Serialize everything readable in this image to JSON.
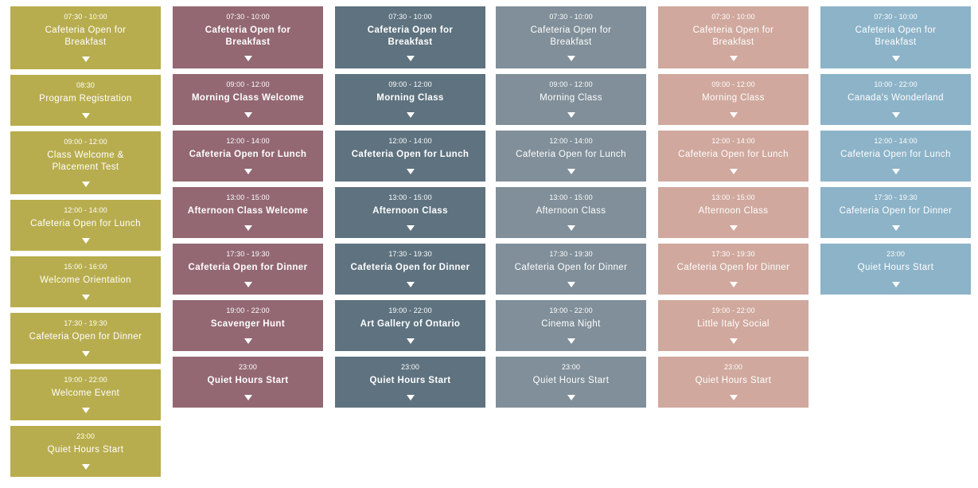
{
  "columns": [
    {
      "color": "#b8ad4e",
      "events": [
        {
          "time": "07:30 - 10:00",
          "title": "Cafeteria Open for Breakfast"
        },
        {
          "time": "08:30",
          "title": "Program Registration"
        },
        {
          "time": "09:00 - 12:00",
          "title": "Class Welcome & Placement Test"
        },
        {
          "time": "12:00 - 14:00",
          "title": "Cafeteria Open for Lunch"
        },
        {
          "time": "15:00 - 16:00",
          "title": "Welcome Orientation"
        },
        {
          "time": "17:30 - 19:30",
          "title": "Cafeteria Open for Dinner"
        },
        {
          "time": "19:00 - 22:00",
          "title": "Welcome Event"
        },
        {
          "time": "23:00",
          "title": "Quiet Hours Start"
        }
      ]
    },
    {
      "color": "#936873",
      "events": [
        {
          "time": "07:30 - 10:00",
          "title": "Cafeteria Open for Breakfast"
        },
        {
          "time": "09:00 - 12:00",
          "title": "Morning Class Welcome"
        },
        {
          "time": "12:00 - 14:00",
          "title": "Cafeteria Open for Lunch"
        },
        {
          "time": "13:00 - 15:00",
          "title": "Afternoon Class Welcome"
        },
        {
          "time": "17:30 - 19:30",
          "title": "Cafeteria Open for Dinner"
        },
        {
          "time": "19:00 - 22:00",
          "title": "Scavenger Hunt"
        },
        {
          "time": "23:00",
          "title": "Quiet Hours Start"
        }
      ]
    },
    {
      "color": "#5e727f",
      "events": [
        {
          "time": "07:30 - 10:00",
          "title": "Cafeteria Open for Breakfast"
        },
        {
          "time": "09:00 - 12:00",
          "title": "Morning Class"
        },
        {
          "time": "12:00 - 14:00",
          "title": "Cafeteria Open for Lunch"
        },
        {
          "time": "13:00 - 15:00",
          "title": "Afternoon Class"
        },
        {
          "time": "17:30 - 19:30",
          "title": "Cafeteria Open for Dinner"
        },
        {
          "time": "19:00 - 22:00",
          "title": "Art Gallery of Ontario"
        },
        {
          "time": "23:00",
          "title": "Quiet Hours Start"
        }
      ]
    },
    {
      "color": "#808f99",
      "events": [
        {
          "time": "07:30 - 10:00",
          "title": "Cafeteria Open for Breakfast"
        },
        {
          "time": "09:00 - 12:00",
          "title": "Morning Class"
        },
        {
          "time": "12:00 - 14:00",
          "title": "Cafeteria Open for Lunch"
        },
        {
          "time": "13:00 - 15:00",
          "title": "Afternoon Class"
        },
        {
          "time": "17:30 - 19:30",
          "title": "Cafeteria Open for Dinner"
        },
        {
          "time": "19:00 - 22:00",
          "title": "Cinema Night"
        },
        {
          "time": "23:00",
          "title": "Quiet Hours Start"
        }
      ]
    },
    {
      "color": "#d0a89d",
      "events": [
        {
          "time": "07:30 - 10:00",
          "title": "Cafeteria Open for Breakfast"
        },
        {
          "time": "09:00 - 12:00",
          "title": "Morning Class"
        },
        {
          "time": "12:00 - 14:00",
          "title": "Cafeteria Open for Lunch"
        },
        {
          "time": "13:00 - 15:00",
          "title": "Afternoon Class"
        },
        {
          "time": "17:30 - 19:30",
          "title": "Cafeteria Open for Dinner"
        },
        {
          "time": "19:00 - 22:00",
          "title": "Little Italy Social"
        },
        {
          "time": "23:00",
          "title": "Quiet Hours Start"
        }
      ]
    },
    {
      "color": "#8cb3c8",
      "events": [
        {
          "time": "07:30 - 10:00",
          "title": "Cafeteria Open for Breakfast"
        },
        {
          "time": "10:00 - 22:00",
          "title": "Canada's Wonderland"
        },
        {
          "time": "12:00 - 14:00",
          "title": "Cafeteria Open for Lunch"
        },
        {
          "time": "17:30 - 19:30",
          "title": "Cafeteria Open for Dinner"
        },
        {
          "time": "23:00",
          "title": "Quiet Hours Start"
        }
      ]
    }
  ],
  "icons": {
    "expand": "caret-down-icon"
  }
}
